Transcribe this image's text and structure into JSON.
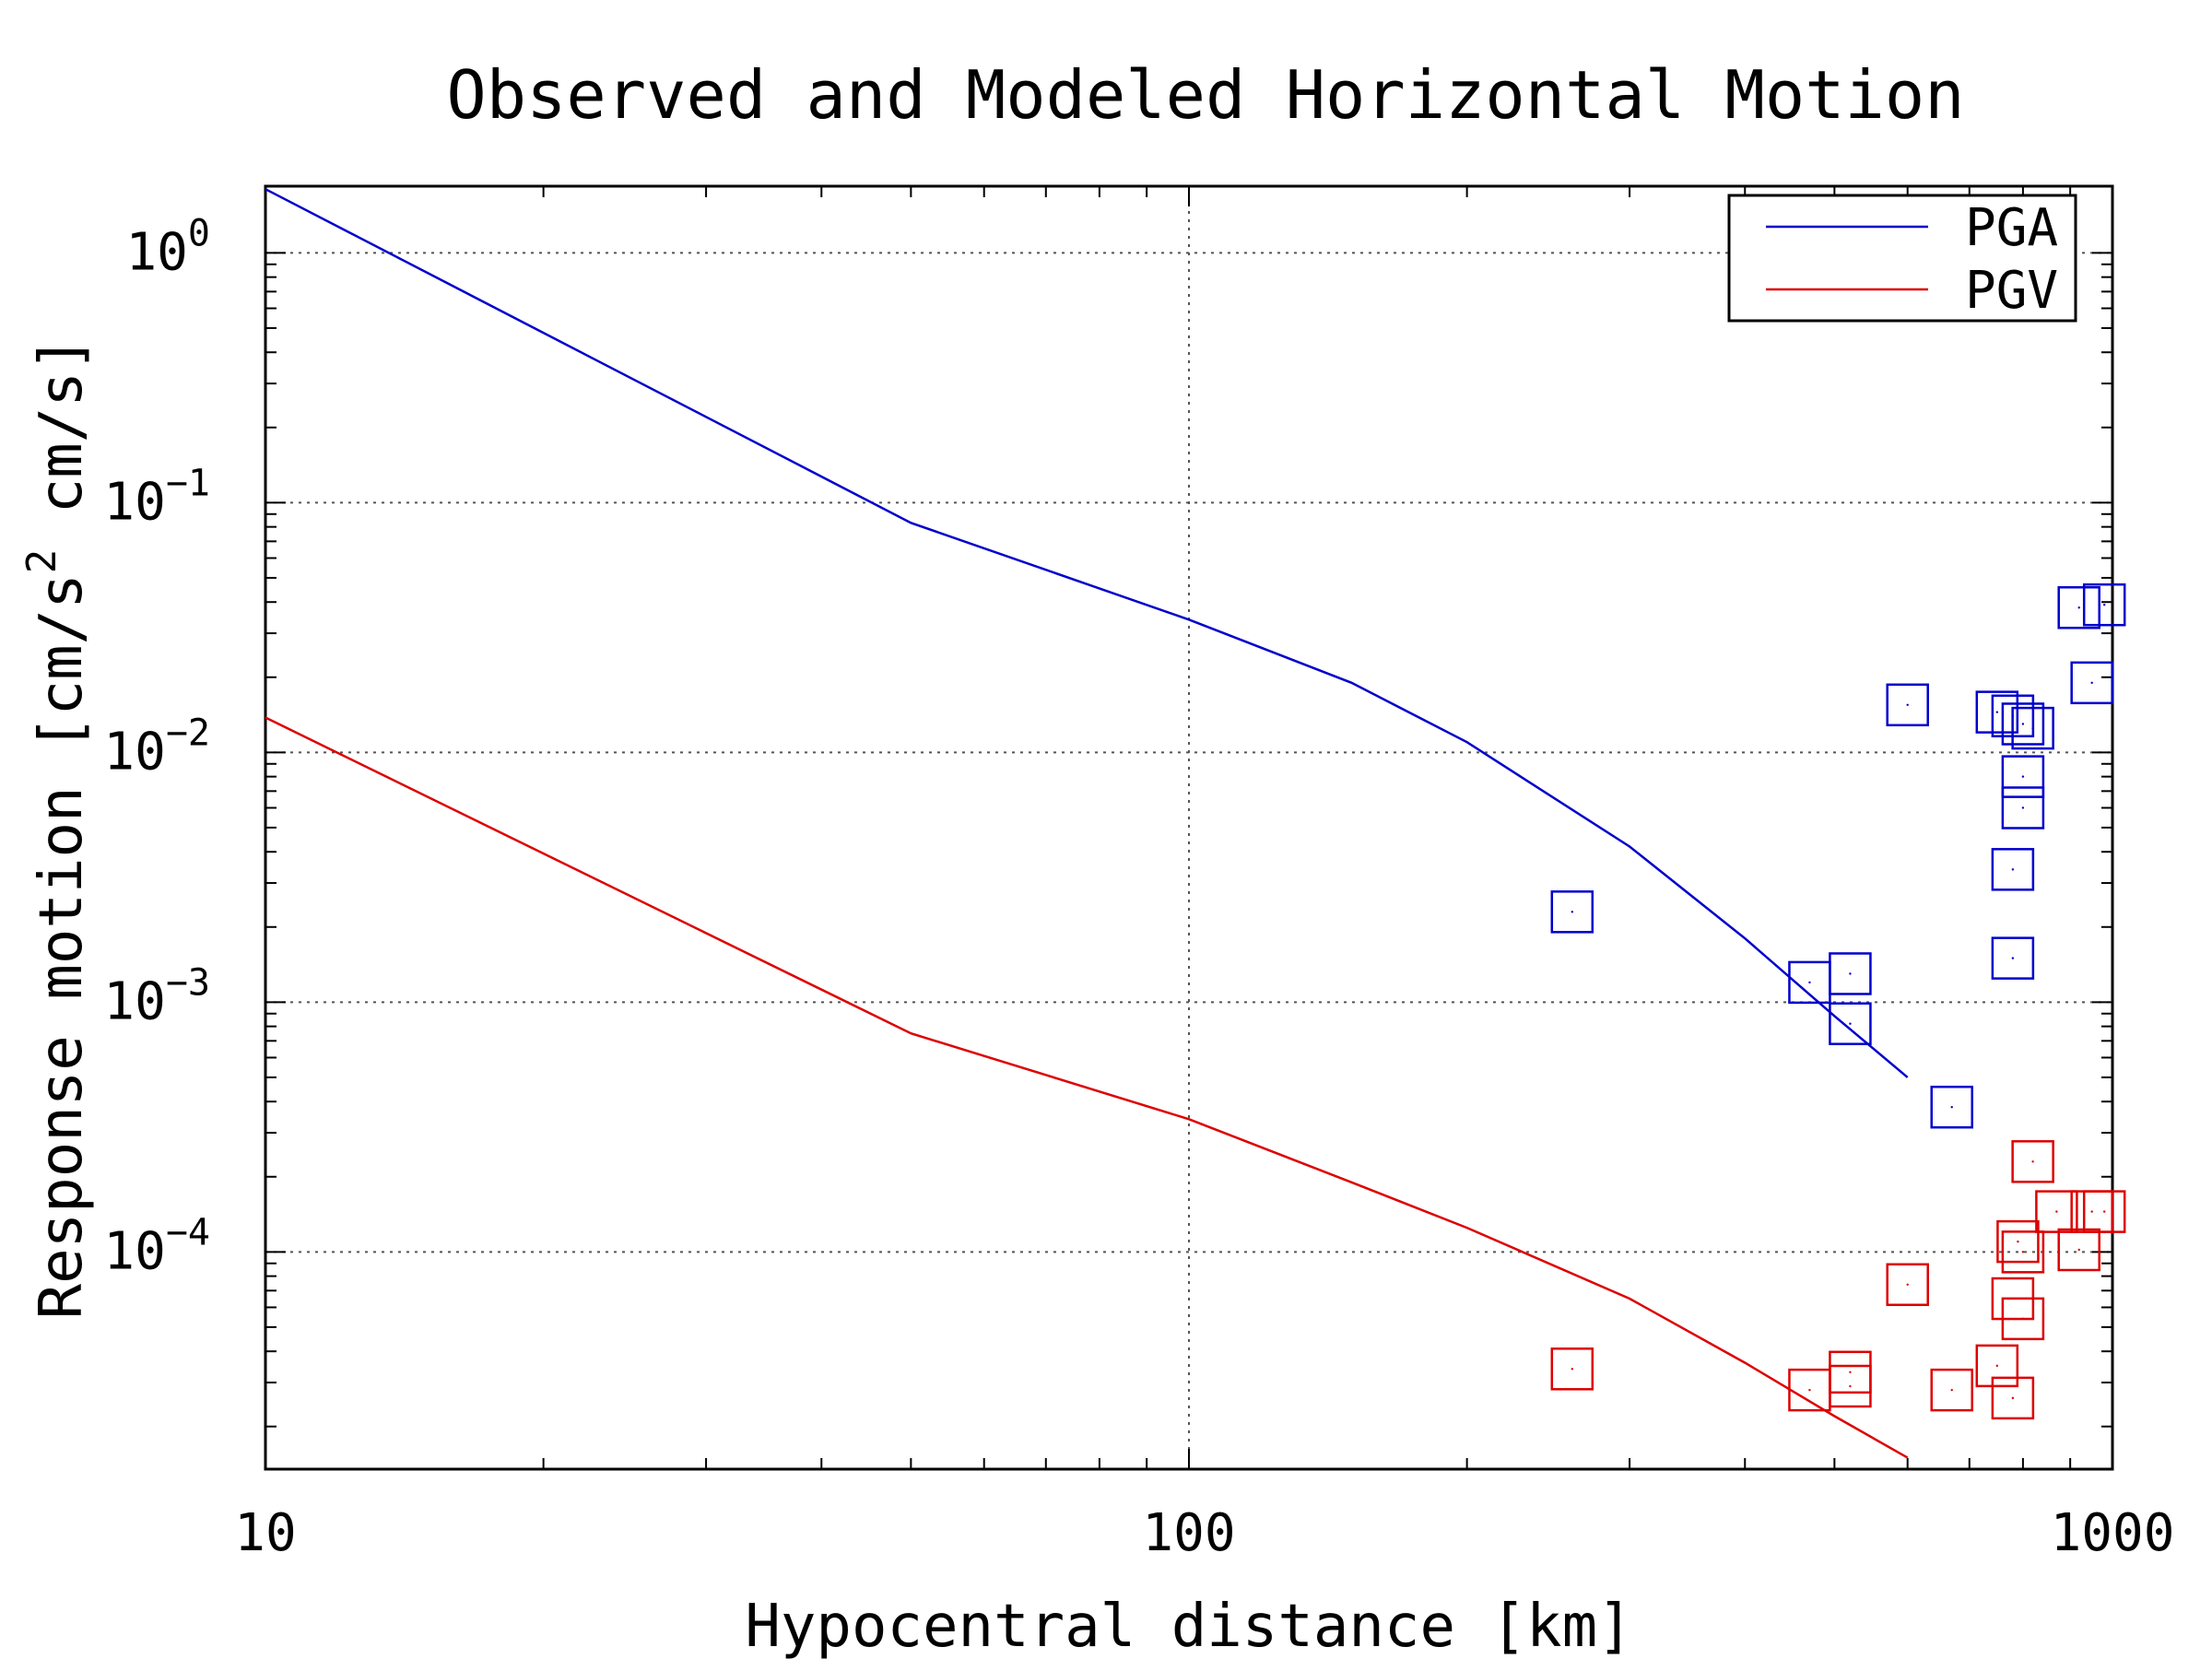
{
  "chart_data": {
    "type": "scatter",
    "title": "Observed and Modeled Horizontal Motion",
    "xlabel": "Hypocentral distance [km]",
    "ylabel": "Response motion [cm/s² cm/s]",
    "ylabel_parts": {
      "before": "Response motion [cm/s",
      "sup": "2",
      "after": " cm/s]"
    },
    "x_scale": "log",
    "y_scale": "log",
    "xlim": [
      10,
      1000
    ],
    "ylim": [
      1.35e-05,
      1.85
    ],
    "x_ticks": [
      {
        "value": 10,
        "label": "10"
      },
      {
        "value": 100,
        "label": "100"
      },
      {
        "value": 1000,
        "label": "1000"
      }
    ],
    "y_ticks": [
      {
        "value": 1,
        "base": "10",
        "exp": "0"
      },
      {
        "value": 0.1,
        "base": "10",
        "exp": "−1"
      },
      {
        "value": 0.01,
        "base": "10",
        "exp": "−2"
      },
      {
        "value": 0.001,
        "base": "10",
        "exp": "−3"
      },
      {
        "value": 0.0001,
        "base": "10",
        "exp": "−4"
      }
    ],
    "grid": true,
    "legend": {
      "position": "top-right",
      "entries": [
        {
          "label": "PGA",
          "color": "#0000cc"
        },
        {
          "label": "PGV",
          "color": "#dd0000"
        }
      ]
    },
    "series": [
      {
        "name": "PGA",
        "kind": "line",
        "color": "#0000cc",
        "x": [
          10,
          50,
          100,
          150,
          200,
          300,
          400,
          500,
          600
        ],
        "y": [
          1.8,
          0.083,
          0.034,
          0.019,
          0.011,
          0.0042,
          0.0018,
          0.00088,
          0.0005
        ]
      },
      {
        "name": "PGV",
        "kind": "line",
        "color": "#dd0000",
        "x": [
          10,
          50,
          100,
          150,
          200,
          300,
          400,
          500,
          600
        ],
        "y": [
          0.0138,
          0.00075,
          0.00034,
          0.00019,
          0.000125,
          6.5e-05,
          3.6e-05,
          2.2e-05,
          1.5e-05
        ]
      },
      {
        "name": "PGA",
        "kind": "markers",
        "color": "#0000cc",
        "x": [
          260,
          470,
          520,
          520,
          600,
          670,
          750,
          780,
          780,
          780,
          800,
          800,
          800,
          820,
          920,
          950,
          980
        ],
        "y": [
          0.0023,
          0.0012,
          0.0013,
          0.00082,
          0.0155,
          0.00038,
          0.0145,
          0.014,
          0.0034,
          0.0015,
          0.008,
          0.013,
          0.006,
          0.0125,
          0.038,
          0.019,
          0.039
        ]
      },
      {
        "name": "PGV",
        "kind": "markers",
        "color": "#dd0000",
        "x": [
          260,
          470,
          520,
          520,
          600,
          670,
          750,
          780,
          780,
          790,
          800,
          800,
          820,
          870,
          920,
          950,
          980
        ],
        "y": [
          3.4e-05,
          2.8e-05,
          3.3e-05,
          2.9e-05,
          7.4e-05,
          2.8e-05,
          3.5e-05,
          2.6e-05,
          6.5e-05,
          0.00011,
          0.0001,
          5.4e-05,
          0.00023,
          0.000145,
          0.000102,
          0.000145,
          0.000145
        ]
      }
    ]
  }
}
